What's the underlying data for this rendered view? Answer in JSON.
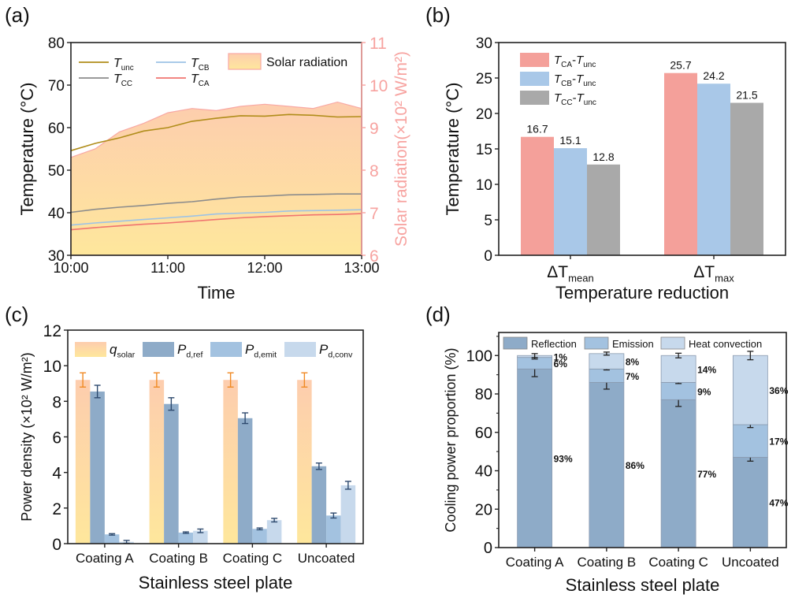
{
  "chart_data": [
    {
      "panel": "(a)",
      "type": "line",
      "xlabel": "Time",
      "ylabel": "Temperature (°C)",
      "y2label": "Solar radiation(×10² W/m²)",
      "xticks": [
        "10:00",
        "11:00",
        "12:00",
        "13:00"
      ],
      "x": [
        0,
        0.25,
        0.5,
        0.75,
        1.0,
        1.25,
        1.5,
        1.75,
        2.0,
        2.25,
        2.5,
        2.75,
        3.0
      ],
      "ylim": [
        30,
        80
      ],
      "yticks": [
        30,
        40,
        50,
        60,
        70,
        80
      ],
      "y2lim": [
        6,
        11
      ],
      "y2ticks": [
        6,
        7,
        8,
        9,
        10,
        11
      ],
      "series": [
        {
          "name": "T_unc",
          "label_main": "T",
          "label_sub": "unc",
          "color": "#b08d1a",
          "values": [
            54.6,
            56.3,
            57.6,
            59.2,
            60.0,
            61.5,
            62.2,
            62.8,
            62.7,
            63.1,
            62.9,
            62.5,
            62.6
          ]
        },
        {
          "name": "T_CB",
          "label_main": "T",
          "label_sub": "CB",
          "color": "#9dc3e6",
          "values": [
            37.1,
            37.6,
            38.0,
            38.4,
            38.8,
            39.2,
            39.7,
            39.9,
            40.1,
            40.4,
            40.5,
            40.6,
            40.7
          ]
        },
        {
          "name": "T_CC",
          "label_main": "T",
          "label_sub": "CC",
          "color": "#8c8c8c",
          "values": [
            40.1,
            40.8,
            41.3,
            41.7,
            42.2,
            42.6,
            43.2,
            43.7,
            43.9,
            44.2,
            44.3,
            44.4,
            44.4
          ]
        },
        {
          "name": "T_CA",
          "label_main": "T",
          "label_sub": "CA",
          "color": "#f07470",
          "values": [
            36.0,
            36.5,
            36.9,
            37.3,
            37.6,
            38.0,
            38.4,
            38.8,
            39.1,
            39.3,
            39.5,
            39.6,
            39.8
          ]
        }
      ],
      "area": {
        "name": "Solar radiation",
        "axis": "right",
        "values": [
          8.3,
          8.5,
          8.9,
          9.1,
          9.35,
          9.45,
          9.4,
          9.5,
          9.55,
          9.5,
          9.45,
          9.6,
          9.45
        ]
      }
    },
    {
      "panel": "(b)",
      "type": "bar",
      "xlabel": "Temperature reduction",
      "ylabel": "Temperature (°C)",
      "categories": [
        {
          "main": "ΔT",
          "sub": "mean"
        },
        {
          "main": "ΔT",
          "sub": "max"
        }
      ],
      "ylim": [
        0,
        30
      ],
      "yticks": [
        0,
        5,
        10,
        15,
        20,
        25,
        30
      ],
      "series": [
        {
          "name": "T_CA-T_unc",
          "a": "CA",
          "b": "unc",
          "color": "#f4a09a",
          "values": [
            16.7,
            25.7
          ],
          "labels": [
            "16.7",
            "25.7"
          ]
        },
        {
          "name": "T_CB-T_unc",
          "a": "CB",
          "b": "unc",
          "color": "#a9c8e8",
          "values": [
            15.1,
            24.2
          ],
          "labels": [
            "15.1",
            "24.2"
          ]
        },
        {
          "name": "T_CC-T_unc",
          "a": "CC",
          "b": "unc",
          "color": "#a9a9a9",
          "values": [
            12.8,
            21.5
          ],
          "labels": [
            "12.8",
            "21.5"
          ]
        }
      ]
    },
    {
      "panel": "(c)",
      "type": "bar",
      "xlabel": "Stainless steel plate",
      "ylabel": "Power density (×10² W/m²)",
      "categories": [
        "Coating A",
        "Coating B",
        "Coating C",
        "Uncoated"
      ],
      "ylim": [
        0,
        12
      ],
      "yticks": [
        0,
        2,
        4,
        6,
        8,
        10,
        12
      ],
      "series": [
        {
          "name": "q_solar",
          "main": "q",
          "sub": "solar",
          "values": [
            9.2,
            9.2,
            9.2,
            9.2
          ],
          "errors": [
            0.4,
            0.4,
            0.4,
            0.4
          ]
        },
        {
          "name": "P_d,ref",
          "main": "P",
          "sub": "d,ref",
          "color": "#8eabc8",
          "values": [
            8.55,
            7.85,
            7.05,
            4.35
          ],
          "errors": [
            0.35,
            0.35,
            0.3,
            0.18
          ]
        },
        {
          "name": "P_d,emit",
          "main": "P",
          "sub": "d,emit",
          "color": "#a3c2e0",
          "values": [
            0.52,
            0.62,
            0.83,
            1.58
          ],
          "errors": [
            0.04,
            0.04,
            0.05,
            0.14
          ]
        },
        {
          "name": "P_d,conv",
          "main": "P",
          "sub": "d,conv",
          "color": "#c7d9ec",
          "values": [
            0.1,
            0.72,
            1.32,
            3.28
          ],
          "errors": [
            0.08,
            0.1,
            0.1,
            0.22
          ]
        }
      ]
    },
    {
      "panel": "(d)",
      "type": "bar",
      "stacked": true,
      "xlabel": "Stainless steel plate",
      "ylabel": "Cooling power proportion (%)",
      "categories": [
        "Coating A",
        "Coating B",
        "Coating C",
        "Uncoated"
      ],
      "ylim": [
        0,
        112
      ],
      "yticks": [
        0,
        20,
        40,
        60,
        80,
        100
      ],
      "series": [
        {
          "name": "Reflection",
          "color": "#8eabc8",
          "values": [
            93,
            86,
            77,
            47
          ],
          "labels": [
            "93%",
            "86%",
            "77%",
            "47%"
          ],
          "errors": [
            4,
            3.5,
            3.5,
            2
          ]
        },
        {
          "name": "Emission",
          "color": "#a3c2e0",
          "values": [
            6,
            7,
            9,
            17
          ],
          "labels": [
            "6%",
            "7%",
            "9%",
            "17%"
          ],
          "errors": [
            0.8,
            0.5,
            0.6,
            1.5
          ]
        },
        {
          "name": "Heat convection",
          "color": "#c7d9ec",
          "values": [
            1,
            8,
            14,
            36
          ],
          "labels": [
            "1%",
            "8%",
            "14%",
            "36%"
          ],
          "errors": [
            1,
            0.8,
            1.2,
            2.2
          ]
        }
      ]
    }
  ]
}
